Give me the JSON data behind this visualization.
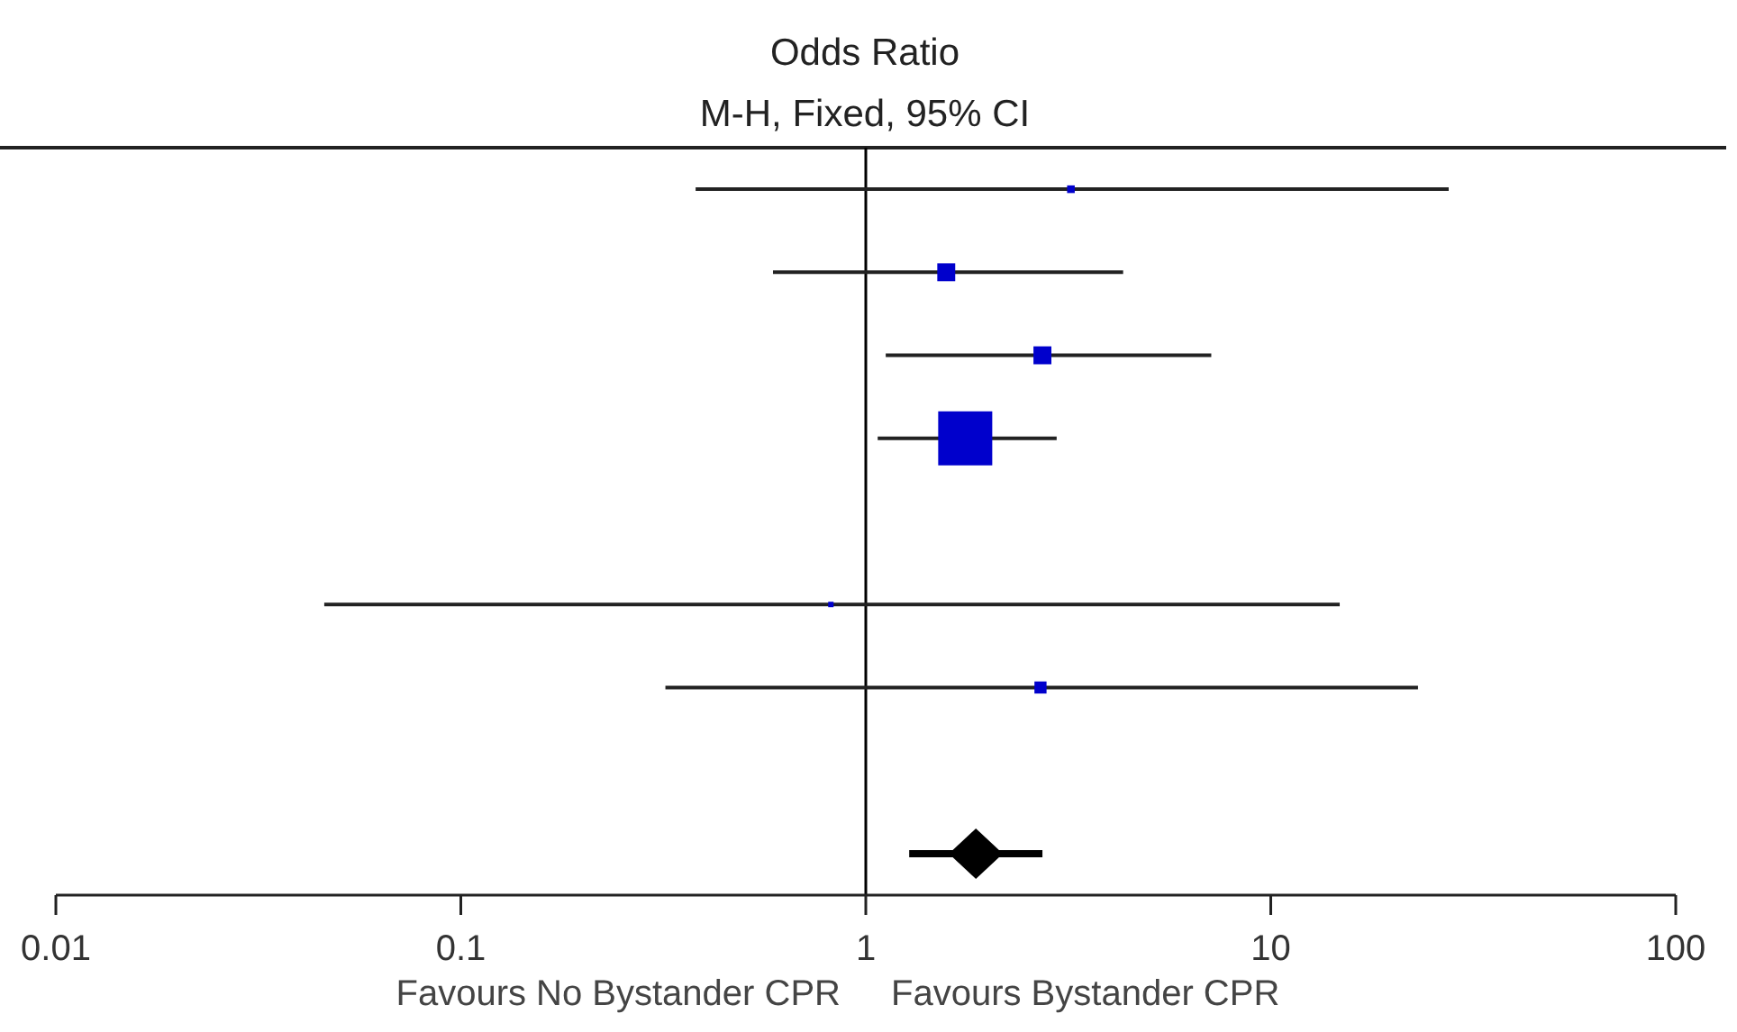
{
  "chart_data": {
    "type": "bubble",
    "title": "Odds Ratio",
    "subtitle": "M-H, Fixed, 95% CI",
    "orientation": "horizontal",
    "log": "x",
    "xlim": [
      0.01,
      100
    ],
    "xticks": [
      0.01,
      0.1,
      1,
      10,
      100
    ],
    "categories": [
      null,
      null,
      null,
      null,
      null,
      null,
      null,
      null,
      null
    ],
    "series": [
      {
        "color": "#0000cc",
        "marker": "square",
        "values": [
          3.21,
          1.58,
          2.73,
          1.76,
          null,
          0.82,
          2.7,
          null,
          null
        ],
        "sizes": [
          0.02,
          0.11,
          0.11,
          1,
          null,
          0.01,
          0.05,
          null,
          null
        ],
        "errors": [
          [
            0.38,
            27.5
          ],
          [
            0.59,
            4.32
          ],
          [
            1.12,
            7.13
          ],
          [
            1.07,
            2.96
          ],
          null,
          [
            0.046,
            14.8
          ],
          [
            0.32,
            23.1
          ],
          null,
          null
        ]
      },
      {
        "type": "scatter",
        "color": "#000000",
        "marker": "diamond",
        "values": [
          null,
          null,
          null,
          null,
          null,
          null,
          null,
          null,
          1.87
        ],
        "errors": [
          null,
          null,
          null,
          null,
          null,
          null,
          null,
          null,
          [
            1.28,
            2.73
          ]
        ]
      }
    ],
    "ref_lines": [
      {
        "axis": "x",
        "value": 1,
        "color": "#000000"
      }
    ],
    "annotations": [
      "Favours No Bystander CPR",
      "Favours Bystander CPR"
    ]
  }
}
